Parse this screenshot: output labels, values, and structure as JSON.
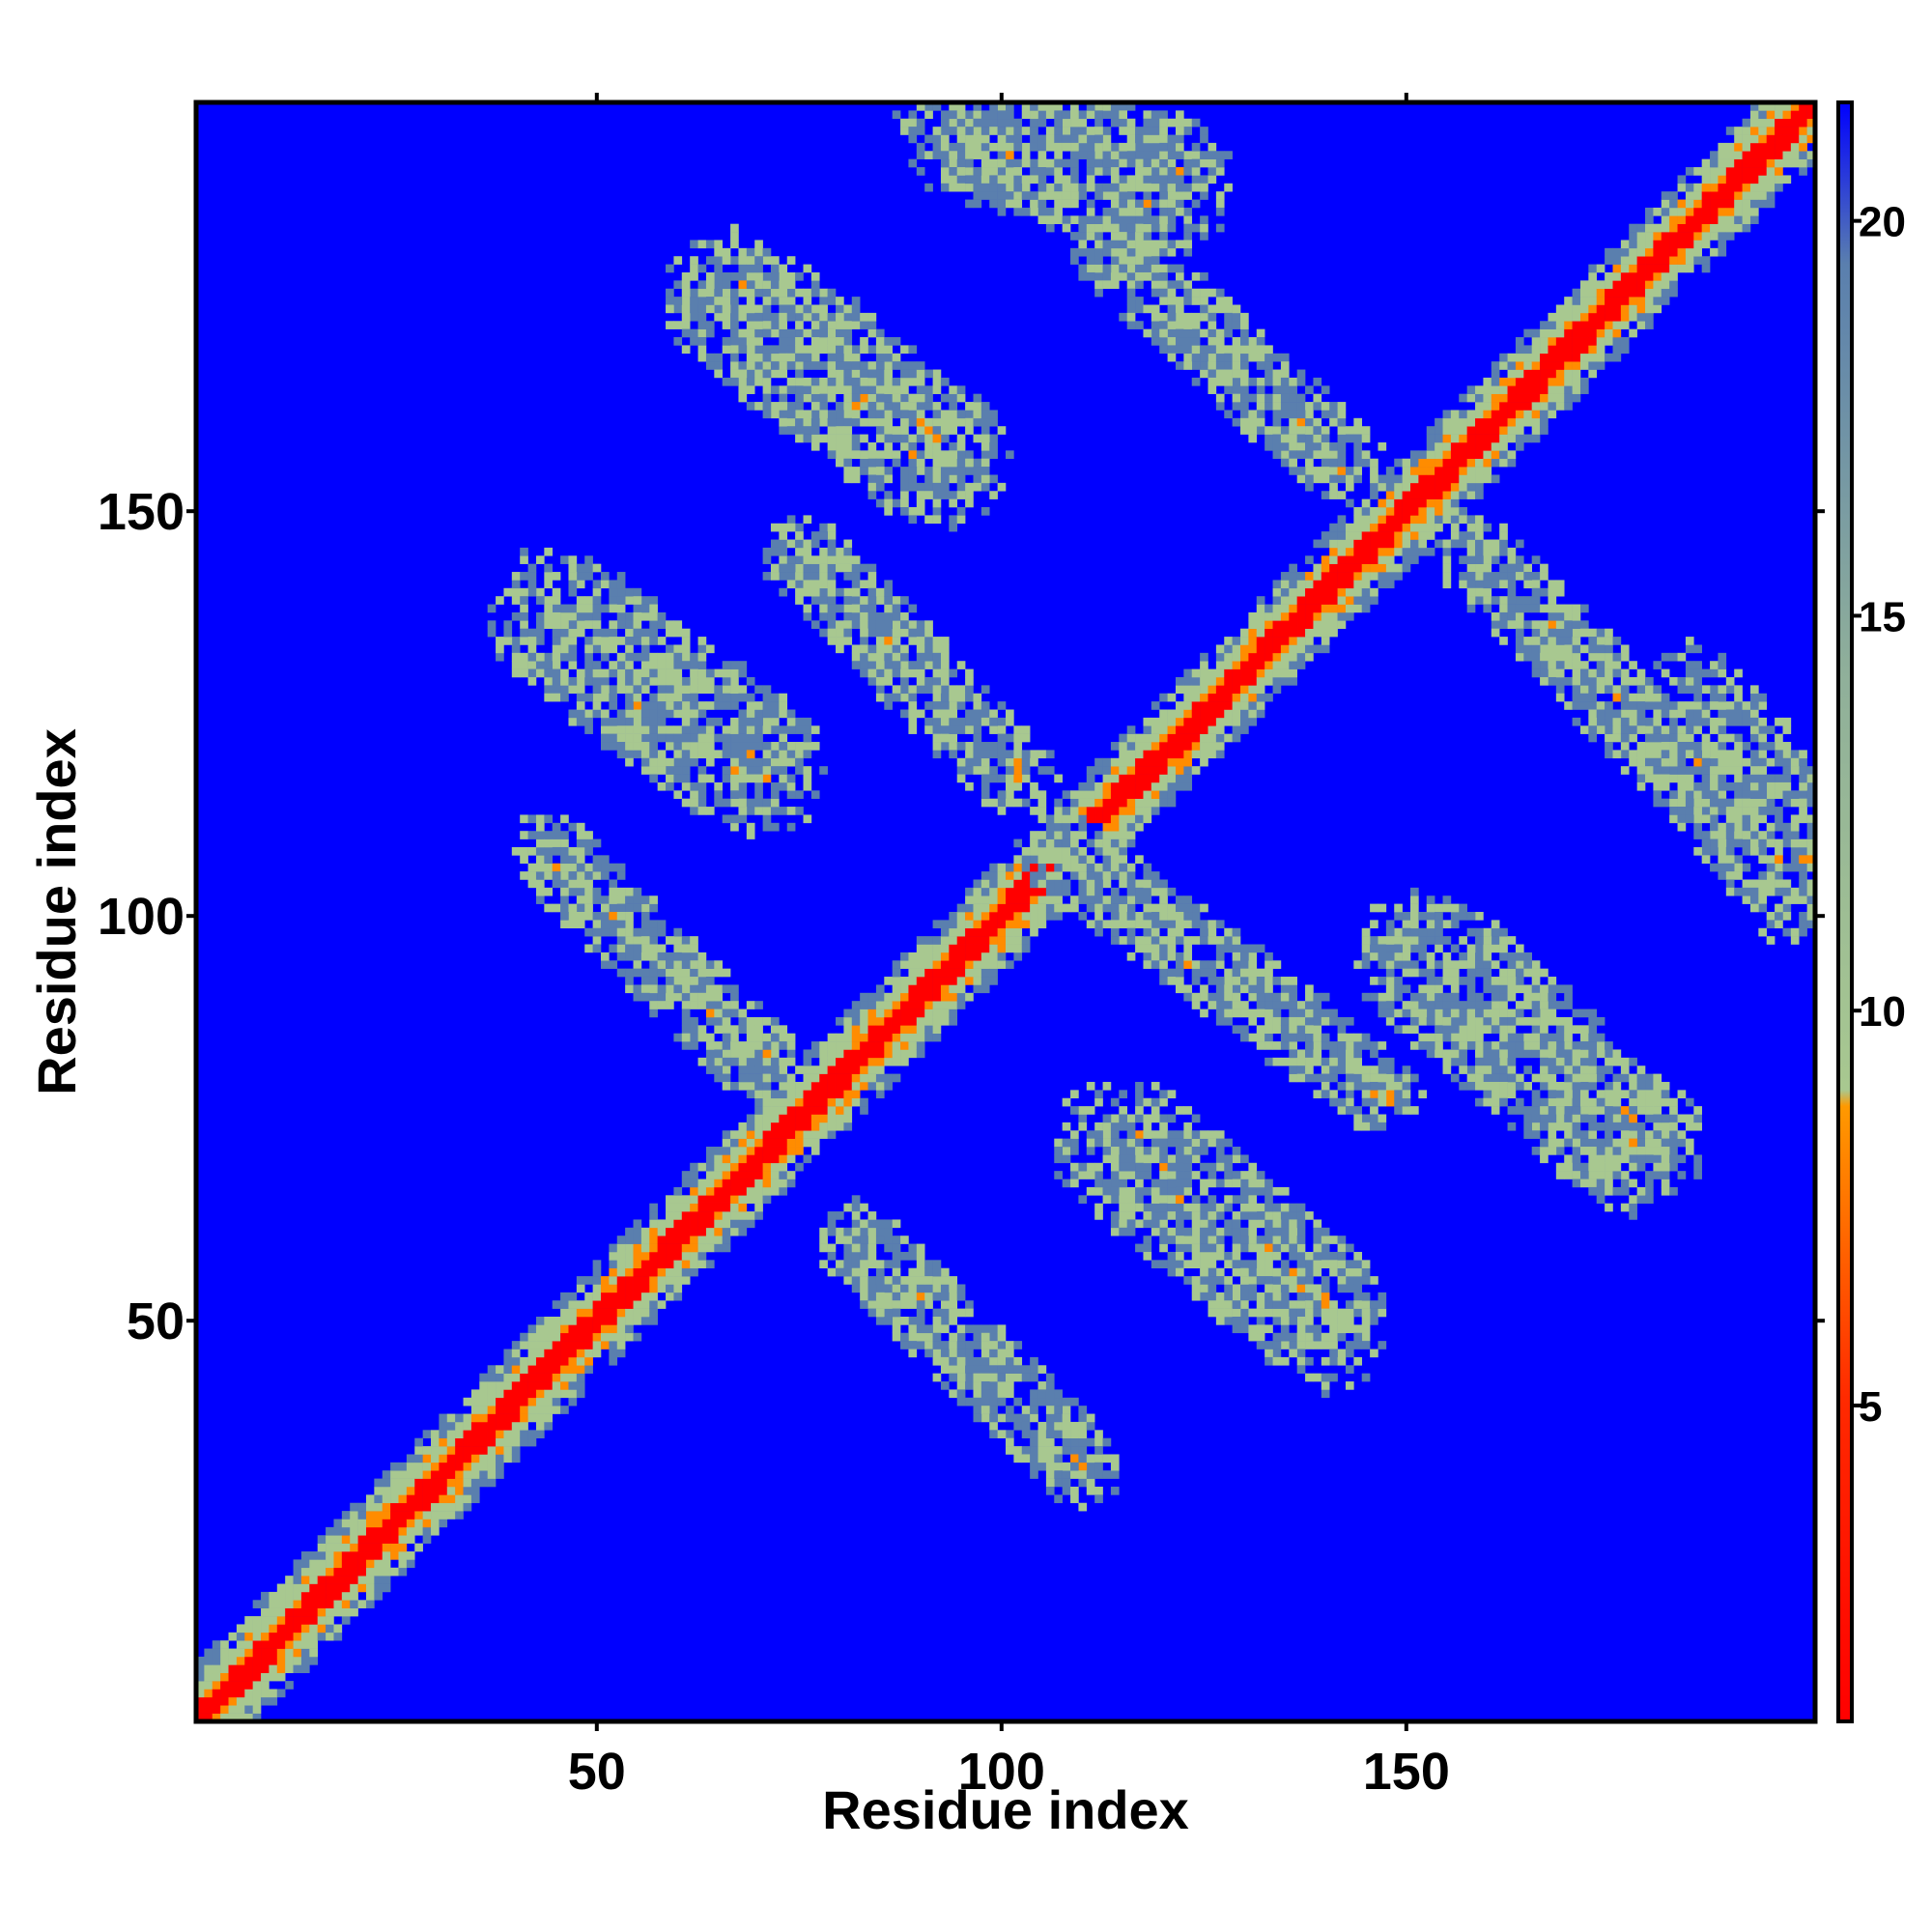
{
  "chart_data": {
    "type": "heatmap",
    "title": "",
    "xlabel": "Residue index",
    "ylabel": "Residue index",
    "xlim": [
      1,
      200
    ],
    "ylim": [
      1,
      200
    ],
    "x_ticks": [
      50,
      100,
      150
    ],
    "y_ticks": [
      50,
      100,
      150
    ],
    "colorbar": {
      "ticks": [
        5,
        10,
        15,
        20
      ],
      "range": [
        1,
        21.5
      ],
      "colors": [
        "#ff0000",
        "#ff8c00",
        "#a8c890",
        "#5a7fae",
        "#0000ff"
      ]
    },
    "background_color": "#0000ff",
    "diagonal_band": {
      "from": 1,
      "to": 200,
      "half_width_residues": 7
    },
    "contact_stripes": [
      {
        "name": "antidiagonal-1",
        "x_range": [
          82,
          110
        ],
        "y_range": [
          60,
          32
        ],
        "density": 0.8
      },
      {
        "name": "antidiagonal-2",
        "x_range": [
          44,
          70
        ],
        "y_range": [
          108,
          82
        ],
        "density": 0.8
      },
      {
        "name": "antidiagonal-3",
        "x_range": [
          75,
          102
        ],
        "y_range": [
          145,
          117
        ],
        "density": 0.8
      },
      {
        "name": "antidiagonal-4",
        "x_range": [
          107,
          147
        ],
        "y_range": [
          108,
          78
        ],
        "density": 0.8
      },
      {
        "name": "antidiagonal-5",
        "x_range": [
          113,
          143
        ],
        "y_range": [
          183,
          155
        ],
        "density": 0.8
      },
      {
        "name": "antidiagonal-6",
        "x_range": [
          158,
          190
        ],
        "y_range": [
          145,
          112
        ],
        "density": 0.8
      },
      {
        "name": "blob-1",
        "x_range": [
          67,
          93
        ],
        "y_range": [
          176,
          156
        ],
        "density": 0.5
      },
      {
        "name": "blob-2",
        "x_range": [
          45,
          70
        ],
        "y_range": [
          137,
          118
        ],
        "density": 0.45
      },
      {
        "name": "blob-3",
        "x_range": [
          115,
          140
        ],
        "y_range": [
          72,
          50
        ],
        "density": 0.45
      },
      {
        "name": "blob-4",
        "x_range": [
          152,
          178
        ],
        "y_range": [
          95,
          72
        ],
        "density": 0.5
      },
      {
        "name": "corner-1",
        "x_range": [
          95,
          120
        ],
        "y_range": [
          198,
          190
        ],
        "density": 0.45
      },
      {
        "name": "corner-2",
        "x_range": [
          185,
          199
        ],
        "y_range": [
          125,
          105
        ],
        "density": 0.4
      }
    ]
  }
}
